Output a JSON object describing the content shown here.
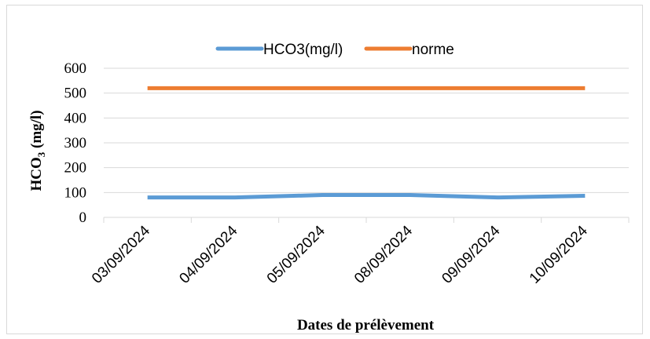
{
  "chart_data": {
    "type": "line",
    "categories": [
      "03/09/2024",
      "04/09/2024",
      "05/09/2024",
      "08/09/2024",
      "09/09/2024",
      "10/09/2024"
    ],
    "series": [
      {
        "name": "HCO3(mg/l)",
        "values": [
          80,
          80,
          90,
          90,
          80,
          87
        ],
        "color": "#5b9bd5"
      },
      {
        "name": "norme",
        "values": [
          520,
          520,
          520,
          520,
          520,
          520
        ],
        "color": "#ed7d31"
      }
    ],
    "title": "",
    "xlabel": "Dates de prélèvement",
    "ylabel": {
      "main": "HCO",
      "sub": "3",
      "unit": " (mg/l)"
    },
    "ylim": [
      0,
      600
    ],
    "yticks": [
      0,
      100,
      200,
      300,
      400,
      500,
      600
    ],
    "grid": true,
    "legend_position": "top"
  }
}
